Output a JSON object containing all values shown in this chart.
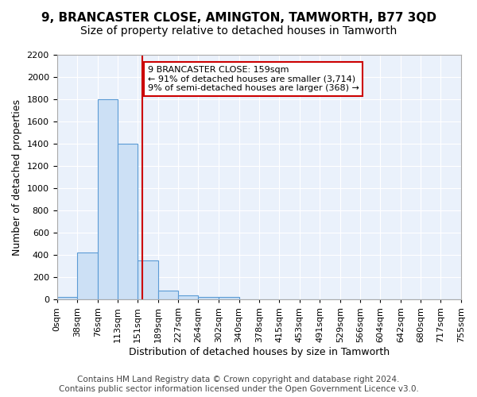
{
  "title": "9, BRANCASTER CLOSE, AMINGTON, TAMWORTH, B77 3QD",
  "subtitle": "Size of property relative to detached houses in Tamworth",
  "xlabel": "Distribution of detached houses by size in Tamworth",
  "ylabel": "Number of detached properties",
  "footer_line1": "Contains HM Land Registry data © Crown copyright and database right 2024.",
  "footer_line2": "Contains public sector information licensed under the Open Government Licence v3.0.",
  "bin_edges": [
    0,
    38,
    76,
    113,
    151,
    189,
    227,
    264,
    302,
    340,
    378,
    415,
    453,
    491,
    529,
    566,
    604,
    642,
    680,
    717,
    755
  ],
  "bin_counts": [
    20,
    420,
    1800,
    1400,
    350,
    80,
    35,
    20,
    20,
    0,
    0,
    0,
    0,
    0,
    0,
    0,
    0,
    0,
    0,
    0
  ],
  "bar_facecolor": "#cce0f5",
  "bar_edgecolor": "#5b9bd5",
  "property_line_x": 159,
  "property_line_color": "#cc0000",
  "annotation_text": "9 BRANCASTER CLOSE: 159sqm\n← 91% of detached houses are smaller (3,714)\n9% of semi-detached houses are larger (368) →",
  "annotation_box_color": "#cc0000",
  "annotation_fontsize": 8,
  "ylim": [
    0,
    2200
  ],
  "yticks": [
    0,
    200,
    400,
    600,
    800,
    1000,
    1200,
    1400,
    1600,
    1800,
    2000,
    2200
  ],
  "xlim": [
    0,
    755
  ],
  "xtick_labels": [
    "0sqm",
    "38sqm",
    "76sqm",
    "113sqm",
    "151sqm",
    "189sqm",
    "227sqm",
    "264sqm",
    "302sqm",
    "340sqm",
    "378sqm",
    "415sqm",
    "453sqm",
    "491sqm",
    "529sqm",
    "566sqm",
    "604sqm",
    "642sqm",
    "680sqm",
    "717sqm",
    "755sqm"
  ],
  "background_color": "#eaf1fb",
  "grid_color": "#ffffff",
  "title_fontsize": 11,
  "subtitle_fontsize": 10,
  "axis_label_fontsize": 9,
  "tick_fontsize": 8,
  "footer_fontsize": 7.5
}
